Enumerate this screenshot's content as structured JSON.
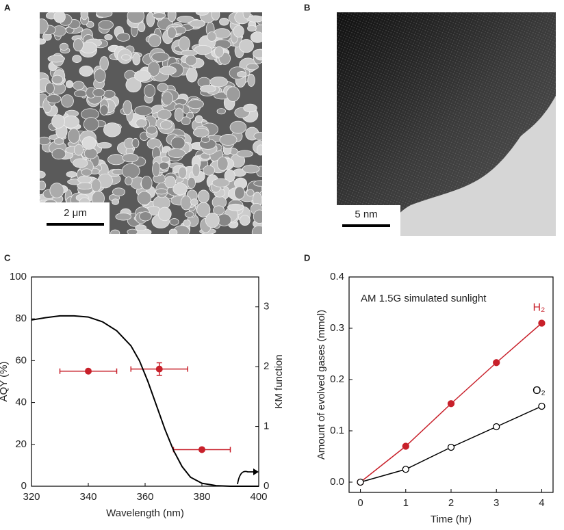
{
  "panels": [
    {
      "label": "A",
      "scale_bar": "2 μm"
    },
    {
      "label": "B",
      "scale_bar": "5 nm"
    }
  ],
  "chart_data": [
    {
      "type": "scatter",
      "panel": "C",
      "x_label": "Wavelength (nm)",
      "y_label": "AQY (%)",
      "y2_label": "KM function",
      "xlim": [
        320,
        400
      ],
      "xticks": [
        320,
        340,
        360,
        380,
        400
      ],
      "ylim": [
        0,
        100
      ],
      "yticks": [
        0,
        20,
        40,
        60,
        80,
        100
      ],
      "y2lim": [
        0,
        3.5
      ],
      "y2ticks": [
        0,
        1,
        2,
        3
      ],
      "series": [
        {
          "color": "#c8202a",
          "x": [
            340,
            365,
            380
          ],
          "values": [
            55,
            56,
            17.5
          ],
          "x_errors": [
            10,
            10,
            10
          ],
          "y_errors": [
            null,
            3,
            null
          ]
        },
        {
          "color": "#000000",
          "axis": "y2",
          "line": true,
          "x": [
            320,
            325,
            330,
            335,
            340,
            345,
            350,
            355,
            358,
            361,
            364,
            367,
            370,
            373,
            376,
            380,
            385,
            390,
            400
          ],
          "values": [
            2.78,
            2.82,
            2.85,
            2.85,
            2.83,
            2.75,
            2.6,
            2.35,
            2.1,
            1.75,
            1.35,
            0.95,
            0.6,
            0.33,
            0.15,
            0.05,
            0.01,
            0,
            0
          ]
        }
      ]
    },
    {
      "type": "line",
      "panel": "D",
      "x_label": "Time (hr)",
      "y_label": "Amount of evolved gases (mmol)",
      "annotation": "AM 1.5G simulated sunlight",
      "xlim": [
        -0.25,
        4.25
      ],
      "xticks": [
        0,
        1,
        2,
        3,
        4
      ],
      "ylim": [
        -0.02,
        0.4
      ],
      "yticks": [
        {
          "value": 0,
          "label": "0.0"
        },
        0.1,
        0.2,
        0.3,
        0.4
      ],
      "x": [
        0,
        1,
        2,
        3,
        4
      ],
      "series": [
        {
          "name": "H₂",
          "color": "#c8202a",
          "marker_fill": "#c8202a",
          "values": [
            0,
            0.07,
            0.153,
            0.233,
            0.31
          ]
        },
        {
          "name": "O₂",
          "color": "#000000",
          "marker_fill": "#ffffff",
          "values": [
            0,
            0.025,
            0.068,
            0.108,
            0.148
          ]
        }
      ]
    }
  ]
}
